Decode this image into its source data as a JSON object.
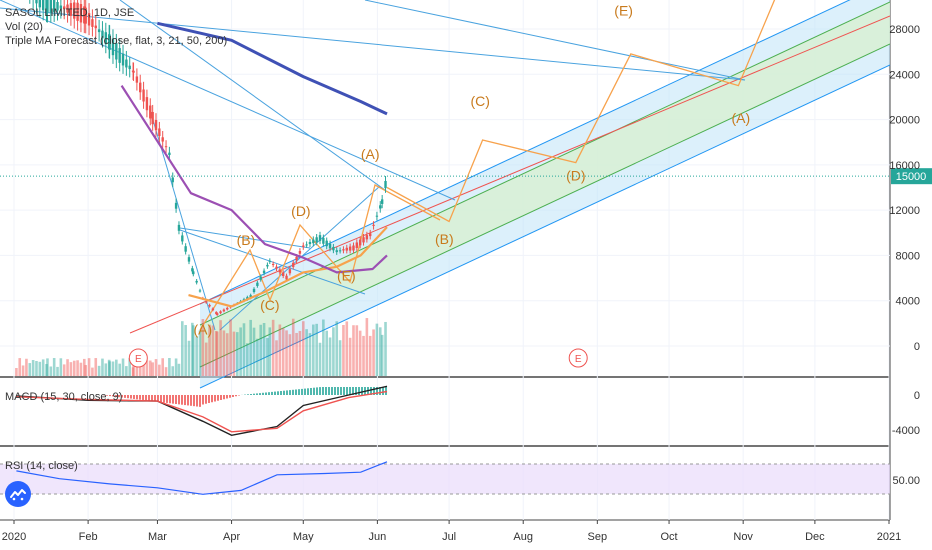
{
  "header": {
    "symbol": "SASOL LIMITED, 1D, JSE",
    "volume_label": "Vol (20)",
    "forecast_label": "Triple MA Forecast (close, flat, 3, 21, 50, 200)"
  },
  "last_price_label": "15000",
  "panes": {
    "macd_label": "MACD (15, 30, close, 9)",
    "rsi_label": "RSI (14, close)"
  },
  "colors": {
    "up": "#26a69a",
    "down": "#ef5350",
    "wave": "#f7a24c",
    "wave_text": "#c87a1c",
    "trend_line": "#4aa3df",
    "ma_fast": "#f7a24c",
    "ma_mid": "#9c4fb3",
    "ma_slow": "#3f51b5",
    "channel_fill": "#bfe3f7",
    "channel_inner": "#d8f0d2",
    "rsi_band": "#e9dcfb",
    "rsi_line": "#2962ff",
    "macd_line": "#222222",
    "signal_line": "#ef5350",
    "logo": "#2962ff"
  },
  "chart_data": [
    {
      "type": "line",
      "title": "SASOL LIMITED, 1D, JSE",
      "x_axis": {
        "ticks": [
          "2020",
          "Feb",
          "Mar",
          "Apr",
          "May",
          "Jun",
          "Jul",
          "Aug",
          "Sep",
          "Oct",
          "Nov",
          "Dec",
          "2021"
        ],
        "tick_dates": [
          "2020-01-01",
          "2020-02-01",
          "2020-03-01",
          "2020-04-01",
          "2020-05-01",
          "2020-06-01",
          "2020-07-01",
          "2020-08-01",
          "2020-09-01",
          "2020-10-01",
          "2020-11-01",
          "2020-12-01",
          "2021-01-01"
        ]
      },
      "y_axis": {
        "ticks": [
          0,
          4000,
          8000,
          12000,
          16000,
          20000,
          24000,
          28000
        ],
        "ylim": [
          -1500,
          30500
        ],
        "last_price": 15000
      },
      "series": [
        {
          "name": "close",
          "points": [
            [
              "2020-01-02",
              32000
            ],
            [
              "2020-01-15",
              30500
            ],
            [
              "2020-01-31",
              29000
            ],
            [
              "2020-02-10",
              27000
            ],
            [
              "2020-02-20",
              24200
            ],
            [
              "2020-02-28",
              20000
            ],
            [
              "2020-03-06",
              17000
            ],
            [
              "2020-03-10",
              10500
            ],
            [
              "2020-03-16",
              6500
            ],
            [
              "2020-03-20",
              4200
            ],
            [
              "2020-03-26",
              2800
            ],
            [
              "2020-04-02",
              3600
            ],
            [
              "2020-04-09",
              4400
            ],
            [
              "2020-04-17",
              7500
            ],
            [
              "2020-04-24",
              6000
            ],
            [
              "2020-05-01",
              8800
            ],
            [
              "2020-05-08",
              9600
            ],
            [
              "2020-05-15",
              8400
            ],
            [
              "2020-05-22",
              8600
            ],
            [
              "2020-05-29",
              9800
            ],
            [
              "2020-06-03",
              12800
            ],
            [
              "2020-06-05",
              15000
            ]
          ]
        },
        {
          "name": "",
          "points": [
            [
              "2020-03-14",
              4500
            ],
            [
              "2020-04-01",
              3500
            ],
            [
              "2020-04-15",
              4800
            ],
            [
              "2020-05-01",
              6500
            ],
            [
              "2020-05-15",
              7000
            ],
            [
              "2020-05-25",
              8000
            ],
            [
              "2020-06-05",
              10500
            ]
          ]
        },
        {
          "name": "",
          "points": [
            [
              "2020-02-15",
              23000
            ],
            [
              "2020-03-15",
              13500
            ],
            [
              "2020-04-01",
              12000
            ],
            [
              "2020-04-15",
              9000
            ],
            [
              "2020-05-01",
              7800
            ],
            [
              "2020-05-15",
              6500
            ],
            [
              "2020-05-30",
              6800
            ],
            [
              "2020-06-05",
              8000
            ]
          ]
        },
        {
          "name": "",
          "points": [
            [
              "2020-03-01",
              28500
            ],
            [
              "2020-04-01",
              27000
            ],
            [
              "2020-05-01",
              23800
            ],
            [
              "2020-05-25",
              21600
            ],
            [
              "2020-06-05",
              20500
            ]
          ]
        }
      ],
      "forecast_path": [
        [
          "2020-06-05",
          14000
        ],
        [
          "2020-07-01",
          11000
        ],
        [
          "2020-07-15",
          18200
        ],
        [
          "2020-08-23",
          16200
        ],
        [
          "2020-09-15",
          25800
        ],
        [
          "2020-10-30",
          23000
        ],
        [
          "2020-11-15",
          31000
        ]
      ],
      "wave_labels": [
        {
          "text": "(A)",
          "date": "2020-03-20",
          "value": 1000
        },
        {
          "text": "(B)",
          "date": "2020-04-07",
          "value": 8900
        },
        {
          "text": "(C)",
          "date": "2020-04-17",
          "value": 3200
        },
        {
          "text": "(D)",
          "date": "2020-04-30",
          "value": 11500
        },
        {
          "text": "(E)",
          "date": "2020-05-19",
          "value": 5800
        },
        {
          "text": "(A)",
          "date": "2020-05-29",
          "value": 16500
        },
        {
          "text": "(B)",
          "date": "2020-06-29",
          "value": 9000
        },
        {
          "text": "(C)",
          "date": "2020-07-14",
          "value": 21200
        },
        {
          "text": "(D)",
          "date": "2020-08-23",
          "value": 14600
        },
        {
          "text": "(E)",
          "date": "2020-09-12",
          "value": 29200
        },
        {
          "text": "(A)",
          "date": "2020-10-31",
          "value": 19700
        }
      ],
      "event_markers": [
        {
          "text": "E",
          "date": "2020-02-22"
        },
        {
          "text": "E",
          "date": "2020-08-24"
        }
      ]
    },
    {
      "type": "bar",
      "title": "Vol (20)",
      "values_note_free": true
    },
    {
      "type": "line",
      "title": "MACD (15, 30, close, 9)",
      "y_axis": {
        "ticks": [
          0,
          -4000
        ]
      },
      "series": [
        {
          "name": "",
          "points": [
            [
              "2020-01-02",
              -100
            ],
            [
              "2020-02-01",
              -600
            ],
            [
              "2020-03-01",
              -700
            ],
            [
              "2020-03-20",
              -3000
            ],
            [
              "2020-04-01",
              -4600
            ],
            [
              "2020-04-20",
              -3600
            ],
            [
              "2020-05-01",
              -1200
            ],
            [
              "2020-05-20",
              0
            ],
            [
              "2020-06-05",
              1000
            ]
          ]
        },
        {
          "name": "",
          "points": [
            [
              "2020-01-02",
              -200
            ],
            [
              "2020-02-01",
              -500
            ],
            [
              "2020-03-01",
              -700
            ],
            [
              "2020-03-20",
              -2500
            ],
            [
              "2020-04-01",
              -4200
            ],
            [
              "2020-04-20",
              -3800
            ],
            [
              "2020-05-01",
              -1800
            ],
            [
              "2020-05-20",
              -300
            ],
            [
              "2020-06-05",
              400
            ]
          ]
        }
      ]
    },
    {
      "type": "line",
      "title": "RSI (14, close)",
      "y_axis": {
        "ticks": [
          50.0
        ]
      },
      "series": [
        {
          "name": "",
          "points": [
            [
              "2020-01-02",
              64
            ],
            [
              "2020-01-20",
              52
            ],
            [
              "2020-02-10",
              44
            ],
            [
              "2020-03-01",
              38
            ],
            [
              "2020-03-20",
              28
            ],
            [
              "2020-04-05",
              34
            ],
            [
              "2020-04-20",
              58
            ],
            [
              "2020-05-10",
              60
            ],
            [
              "2020-05-25",
              62
            ],
            [
              "2020-06-05",
              78
            ]
          ]
        }
      ]
    }
  ]
}
